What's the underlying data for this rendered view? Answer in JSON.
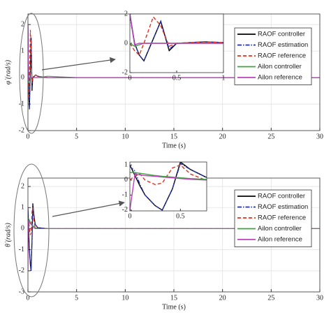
{
  "chart_data": [
    {
      "type": "line",
      "ylabel": "φ̇ (rad/s)",
      "xlabel": "Time (s)",
      "x": [
        0,
        0.05,
        0.1,
        0.15,
        0.25,
        0.33,
        0.42,
        0.5,
        0.8,
        1,
        2,
        5,
        10,
        15,
        20,
        30
      ],
      "xlim": [
        0,
        30
      ],
      "xticks": [
        0,
        5,
        10,
        15,
        20,
        25,
        30
      ],
      "ylim": [
        -2,
        2.4
      ],
      "yticks": [
        -2,
        -1,
        0,
        1,
        2
      ],
      "inset": {
        "xlim": [
          0,
          1
        ],
        "ylim": [
          -2,
          2
        ],
        "xticks": [
          0,
          0.5,
          1
        ],
        "yticks": [
          -2,
          0,
          2
        ]
      },
      "series": [
        {
          "name": "RAOF controller",
          "color": "#000000",
          "style": "solid",
          "values": [
            2,
            0,
            -0.8,
            -1.2,
            0.3,
            1.5,
            -0.5,
            0,
            0.1,
            0.05,
            0,
            0,
            0,
            0,
            0,
            0
          ]
        },
        {
          "name": "RAOF estimation",
          "color": "#1f2fa8",
          "style": "dashdot",
          "values": [
            1.8,
            0,
            -0.8,
            -1.2,
            0.3,
            1.5,
            -0.4,
            0,
            0.1,
            0.05,
            0,
            0,
            0,
            0,
            0,
            0
          ]
        },
        {
          "name": "RAOF reference",
          "color": "#e0301e",
          "style": "dashed",
          "values": [
            0,
            -0.5,
            -0.8,
            0,
            1.8,
            1.2,
            -0.2,
            0,
            0.1,
            0.05,
            0,
            0,
            0,
            0,
            0,
            0
          ]
        },
        {
          "name": "Ailon controller",
          "color": "#3aa63a",
          "style": "solid",
          "values": [
            0,
            -0.2,
            -0.1,
            0,
            0,
            0,
            0,
            0,
            0,
            0,
            0.05,
            0,
            0,
            0,
            0,
            0
          ]
        },
        {
          "name": "Ailon reference",
          "color": "#c040c0",
          "style": "solid",
          "values": [
            2,
            -0.1,
            0,
            0,
            0,
            0,
            0,
            0,
            0,
            0,
            0,
            0,
            0,
            0,
            0,
            0
          ]
        }
      ]
    },
    {
      "type": "line",
      "ylabel": "θ̇ (rad/s)",
      "xlabel": "Time (s)",
      "x": [
        0,
        0.05,
        0.1,
        0.15,
        0.25,
        0.32,
        0.42,
        0.5,
        0.6,
        0.75,
        1,
        2,
        5,
        10,
        20,
        30
      ],
      "xlim": [
        0,
        30
      ],
      "xticks": [
        0,
        5,
        10,
        15,
        20,
        25,
        30
      ],
      "ylim": [
        -3,
        2.4
      ],
      "yticks": [
        -3,
        -2,
        -1,
        0,
        1,
        2
      ],
      "inset": {
        "xlim": [
          0,
          0.76
        ],
        "ylim": [
          -2.05,
          1.2
        ],
        "xticks": [
          0,
          0.5
        ],
        "yticks": [
          -2,
          -1,
          0,
          1
        ]
      },
      "series": [
        {
          "name": "RAOF controller",
          "color": "#000000",
          "style": "solid",
          "values": [
            1,
            0.3,
            -0.4,
            -1,
            -1.7,
            -2,
            -0.6,
            1.2,
            0.7,
            0.2,
            0.05,
            0,
            0,
            0,
            0,
            0
          ]
        },
        {
          "name": "RAOF estimation",
          "color": "#1f2fa8",
          "style": "dashdot",
          "values": [
            0.9,
            0.6,
            -0.3,
            -1,
            -1.7,
            -2,
            -0.6,
            1.1,
            0.7,
            0.2,
            0.05,
            0,
            0,
            0,
            0,
            0
          ]
        },
        {
          "name": "RAOF reference",
          "color": "#e0301e",
          "style": "dashed",
          "values": [
            0,
            0.3,
            0.4,
            0,
            -0.3,
            -0.2,
            0.8,
            1,
            0.4,
            0,
            0,
            0,
            0,
            0,
            0,
            0
          ]
        },
        {
          "name": "Ailon controller",
          "color": "#3aa63a",
          "style": "solid",
          "values": [
            0.5,
            0.5,
            0.45,
            0.4,
            0.3,
            0.25,
            0.2,
            0.15,
            0.1,
            0.05,
            0,
            0,
            0,
            0,
            0,
            0
          ]
        },
        {
          "name": "Ailon reference",
          "color": "#c040c0",
          "style": "solid",
          "values": [
            -2,
            0.4,
            0.35,
            0.3,
            0.25,
            0.2,
            0.15,
            0.1,
            0.05,
            0,
            0,
            0,
            0,
            0,
            0,
            0
          ]
        }
      ]
    }
  ]
}
